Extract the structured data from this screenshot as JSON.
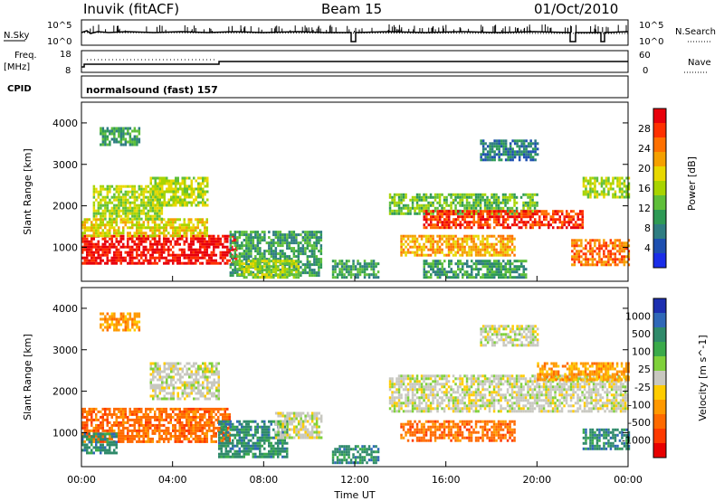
{
  "header": {
    "station": "Inuvik (fitACF)",
    "beam": "Beam 15",
    "date": "01/Oct/2010"
  },
  "top_panels": {
    "nsky_label": "N.Sky",
    "nsky_ticks": [
      "10^5",
      "10^0"
    ],
    "nsearch_label": "N.Search",
    "nsearch_ticks": [
      "10^5",
      "10^0"
    ],
    "freq_label_1": "Freq.",
    "freq_label_2": "[MHz]",
    "freq_ticks": [
      "18",
      "8"
    ],
    "nave_label": "Nave",
    "nave_ticks": [
      "60",
      "0"
    ],
    "cpid_label": "CPID",
    "cpid_text": "normalsound (fast) 157"
  },
  "chart_data": [
    {
      "type": "heatmap",
      "title": "",
      "quantity": "Power",
      "colorbar_label": "Power [dB]",
      "colorbar_ticks": [
        "28",
        "24",
        "20",
        "16",
        "12",
        "8",
        "4"
      ],
      "colorbar_colors": [
        "#e8000b",
        "#ff3000",
        "#ff7000",
        "#f5a000",
        "#e8d800",
        "#a8d400",
        "#5fbf3a",
        "#2e9a55",
        "#2f7d82",
        "#1d4fb0",
        "#1a2de8"
      ],
      "xlabel": "",
      "ylabel": "Slant Range [km]",
      "yticks": [
        "4000",
        "3000",
        "2000",
        "1000"
      ],
      "xlim": [
        0,
        24
      ],
      "ylim": [
        180,
        4500
      ],
      "xunit": "hours UT",
      "echo_regions": [
        {
          "t": [
            0,
            6.8
          ],
          "r": [
            600,
            1300
          ],
          "level": 10
        },
        {
          "t": [
            0,
            5.5
          ],
          "r": [
            1300,
            1700
          ],
          "level": 6
        },
        {
          "t": [
            0.5,
            3.5
          ],
          "r": [
            1700,
            2500
          ],
          "level": 5
        },
        {
          "t": [
            3,
            5.5
          ],
          "r": [
            2000,
            2700
          ],
          "level": 5
        },
        {
          "t": [
            0.8,
            2.5
          ],
          "r": [
            3500,
            3900
          ],
          "level": 3
        },
        {
          "t": [
            6.5,
            10.5
          ],
          "r": [
            300,
            1400
          ],
          "level": 3
        },
        {
          "t": [
            6.8,
            9.5
          ],
          "r": [
            300,
            700
          ],
          "level": 5
        },
        {
          "t": [
            11,
            13
          ],
          "r": [
            250,
            700
          ],
          "level": 3
        },
        {
          "t": [
            13.5,
            20
          ],
          "r": [
            1800,
            2300
          ],
          "level": 4
        },
        {
          "t": [
            15,
            22
          ],
          "r": [
            1500,
            1900
          ],
          "level": 9
        },
        {
          "t": [
            14,
            19
          ],
          "r": [
            800,
            1300
          ],
          "level": 7
        },
        {
          "t": [
            15,
            19.5
          ],
          "r": [
            300,
            700
          ],
          "level": 3
        },
        {
          "t": [
            21.5,
            24
          ],
          "r": [
            600,
            1200
          ],
          "level": 8
        },
        {
          "t": [
            17.5,
            20
          ],
          "r": [
            3100,
            3600
          ],
          "level": 2
        },
        {
          "t": [
            22,
            24
          ],
          "r": [
            2200,
            2700
          ],
          "level": 5
        }
      ]
    },
    {
      "type": "heatmap",
      "title": "",
      "quantity": "Velocity",
      "colorbar_label": "Velocity [m s^-1]",
      "colorbar_ticks": [
        "1000",
        "500",
        "100",
        "25",
        "-25",
        "-100",
        "-500",
        "-1000"
      ],
      "colorbar_colors": [
        "#1d2fb0",
        "#2f68b8",
        "#2f8a6a",
        "#3aaa4a",
        "#7fd13a",
        "#c8c8c0",
        "#ffcc00",
        "#ff9900",
        "#ff6a00",
        "#ff3a00",
        "#e80000"
      ],
      "xlabel": "Time UT",
      "ylabel": "Slant Range [km]",
      "yticks": [
        "4000",
        "3000",
        "2000",
        "1000"
      ],
      "xticks": [
        "00:00",
        "04:00",
        "08:00",
        "12:00",
        "16:00",
        "20:00",
        "00:00"
      ],
      "xlim": [
        0,
        24
      ],
      "ylim": [
        180,
        4500
      ],
      "xunit": "hours UT",
      "echo_regions": [
        {
          "t": [
            0,
            6.5
          ],
          "r": [
            800,
            1600
          ],
          "level": -3
        },
        {
          "t": [
            0,
            1.5
          ],
          "r": [
            500,
            1000
          ],
          "level": 3
        },
        {
          "t": [
            3,
            6
          ],
          "r": [
            1800,
            2700
          ],
          "level": 0
        },
        {
          "t": [
            6,
            9
          ],
          "r": [
            400,
            1300
          ],
          "level": 3
        },
        {
          "t": [
            8.5,
            10.5
          ],
          "r": [
            900,
            1500
          ],
          "level": 0
        },
        {
          "t": [
            11,
            13
          ],
          "r": [
            250,
            700
          ],
          "level": 3
        },
        {
          "t": [
            13.5,
            24
          ],
          "r": [
            1500,
            2400
          ],
          "level": 0
        },
        {
          "t": [
            14,
            19
          ],
          "r": [
            800,
            1300
          ],
          "level": -3
        },
        {
          "t": [
            20,
            24
          ],
          "r": [
            2300,
            2700
          ],
          "level": -2
        },
        {
          "t": [
            22,
            24
          ],
          "r": [
            600,
            1100
          ],
          "level": 3
        },
        {
          "t": [
            17.5,
            20
          ],
          "r": [
            3100,
            3600
          ],
          "level": 0
        },
        {
          "t": [
            0.8,
            2.5
          ],
          "r": [
            3500,
            3900
          ],
          "level": -2
        }
      ]
    }
  ]
}
